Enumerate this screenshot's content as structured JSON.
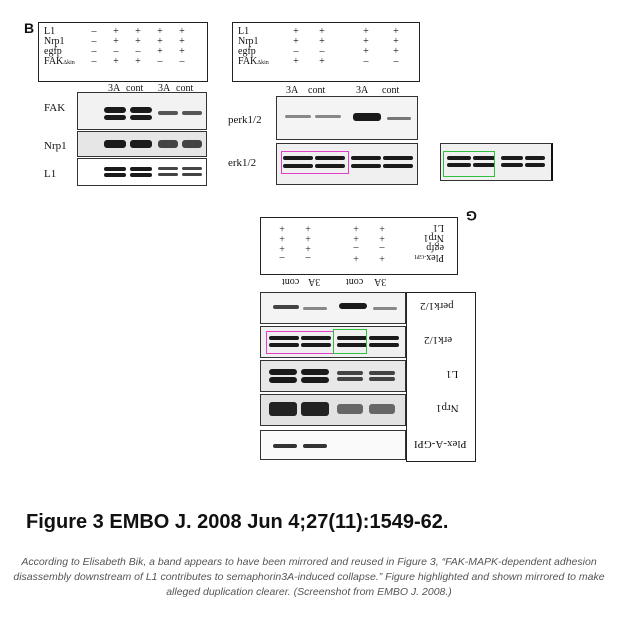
{
  "panel_b": {
    "letter": "B",
    "conditions": [
      {
        "label": "L1",
        "values": [
          "–",
          "+",
          "+",
          "+",
          "+"
        ]
      },
      {
        "label": "Nrp1",
        "values": [
          "–",
          "+",
          "+",
          "+",
          "+"
        ]
      },
      {
        "label": "egfp",
        "values": [
          "–",
          "–",
          "–",
          "+",
          "+"
        ]
      },
      {
        "label": "FAK",
        "sub": "Δkin",
        "values": [
          "–",
          "+",
          "+",
          "–",
          "–"
        ]
      }
    ],
    "lane_labels": [
      "3A",
      "cont",
      "3A",
      "cont"
    ],
    "row_labels": [
      "FAK",
      "Nrp1",
      "L1"
    ]
  },
  "panel_c": {
    "conditions": [
      {
        "label": "L1",
        "values": [
          "+",
          "+",
          "+",
          "+"
        ]
      },
      {
        "label": "Nrp1",
        "values": [
          "+",
          "+",
          "+",
          "+"
        ]
      },
      {
        "label": "egfp",
        "values": [
          "–",
          "–",
          "+",
          "+"
        ]
      },
      {
        "label": "FAK",
        "sub": "Δkin",
        "values": [
          "+",
          "+",
          "–",
          "–"
        ]
      }
    ],
    "lane_labels": [
      "3A",
      "cont",
      "3A",
      "cont"
    ],
    "row_labels": [
      "perk1/2",
      "erk1/2"
    ]
  },
  "panel_g": {
    "letter": "G",
    "conditions": [
      {
        "label": "L1",
        "values": [
          "+",
          "+",
          "+",
          "+"
        ]
      },
      {
        "label": "Nrp1",
        "values": [
          "+",
          "+",
          "+",
          "+"
        ]
      },
      {
        "label": "egfp",
        "values": [
          "–",
          "–",
          "+",
          "+"
        ]
      },
      {
        "label": "Plex",
        "sub": "-GPI",
        "values": [
          "+",
          "+",
          "–",
          "–"
        ]
      }
    ],
    "lane_labels": [
      "3A",
      "cont",
      "3A",
      "cont"
    ],
    "row_labels": [
      "perk1/2",
      "erk1/2",
      "L1",
      "Nrp1",
      "Plex-A-GPI"
    ]
  },
  "highlight_colors": {
    "magenta": "#e040c8",
    "green": "#2fbf3c"
  },
  "figure_title": "Figure 3 EMBO J. 2008 Jun 4;27(11):1549-62.",
  "caption": "According to Elisabeth Bik, a band appears to have been mirrored and reused in Figure 3, “FAK-MAPK-dependent adhesion disassembly downstream of L1 contributes to semaphorin3A-induced collapse.” Figure highlighted and shown mirrored to make alleged duplication clearer. (Screenshot from EMBO J. 2008.)"
}
